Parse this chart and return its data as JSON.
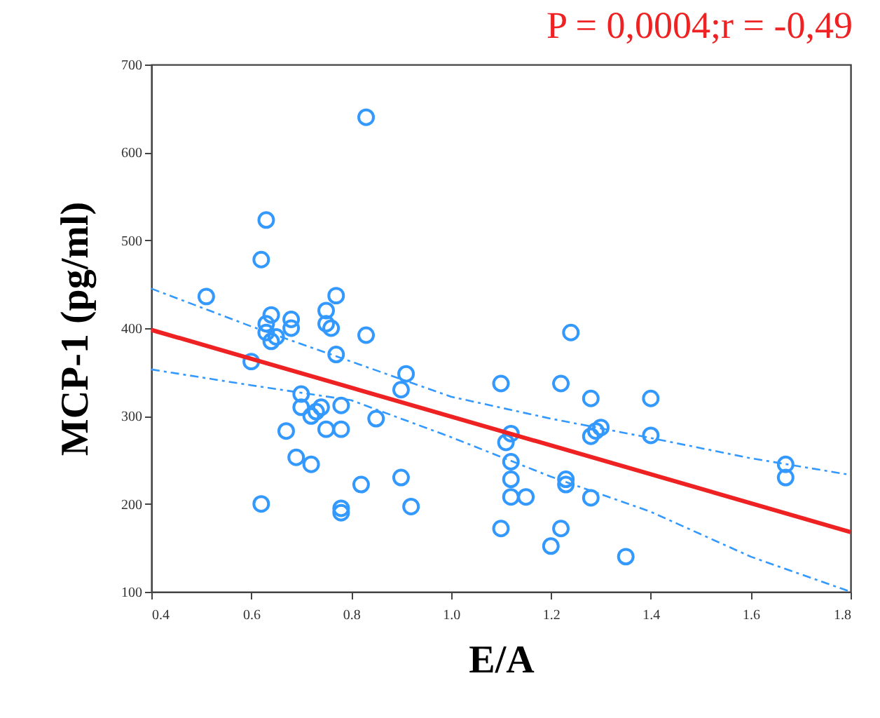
{
  "chart_data": {
    "type": "scatter",
    "xlabel": "E/A",
    "ylabel": "MCP-1 (pg/ml)",
    "annotations": [
      "P = 0,0004;r = -0,49"
    ],
    "xlim": [
      0.4,
      1.8
    ],
    "ylim": [
      100,
      700
    ],
    "xticks": [
      0.4,
      0.6,
      0.8,
      {
        "value": 1,
        "label": "1.0"
      },
      1.2,
      1.4,
      1.6,
      1.8
    ],
    "yticks": [
      100,
      200,
      300,
      400,
      500,
      600,
      700
    ],
    "grid": false,
    "series": [
      {
        "marker": "circle",
        "color": "#3399ff",
        "x": [
          0.51,
          0.6,
          0.62,
          0.63,
          0.62,
          0.63,
          0.63,
          0.64,
          0.64,
          0.65,
          0.68,
          0.68,
          0.67,
          0.69,
          0.7,
          0.7,
          0.72,
          0.72,
          0.73,
          0.75,
          0.75,
          0.76,
          0.77,
          0.77,
          0.74,
          0.75,
          0.78,
          0.78,
          0.78,
          0.78,
          0.82,
          0.83,
          0.83,
          0.85,
          0.9,
          0.9,
          0.91,
          0.92,
          1.1,
          1.1,
          1.11,
          1.12,
          1.12,
          1.12,
          1.12,
          1.15,
          1.2,
          1.22,
          1.22,
          1.23,
          1.23,
          1.24,
          1.28,
          1.28,
          1.28,
          1.29,
          1.3,
          1.35,
          1.4,
          1.4,
          1.67,
          1.67
        ],
        "values": [
          436,
          362,
          478,
          523,
          200,
          405,
          395,
          385,
          415,
          390,
          410,
          400,
          283,
          253,
          325,
          310,
          300,
          245,
          305,
          420,
          405,
          400,
          437,
          370,
          310,
          285,
          285,
          312,
          195,
          190,
          222,
          392,
          640,
          297,
          330,
          230,
          348,
          197,
          337,
          172,
          270,
          280,
          248,
          228,
          208,
          208,
          152,
          337,
          172,
          228,
          222,
          395,
          320,
          277,
          207,
          283,
          287,
          140,
          320,
          278,
          245,
          230
        ]
      },
      {
        "type": "line",
        "line_style": "solid",
        "color": "#ee2222",
        "x": [
          0.4,
          1.8
        ],
        "values": [
          398,
          168
        ]
      },
      {
        "type": "line",
        "line_style": "dashed",
        "color": "#3399ff",
        "x": [
          0.4,
          0.6,
          0.8,
          1.0,
          1.2,
          1.4,
          1.6,
          1.8
        ],
        "values": [
          445,
          402,
          362,
          322,
          297,
          275,
          252,
          233
        ]
      },
      {
        "type": "line",
        "line_style": "dashed",
        "color": "#3399ff",
        "x": [
          0.4,
          0.6,
          0.8,
          1.0,
          1.2,
          1.4,
          1.6,
          1.8
        ],
        "values": [
          353,
          335,
          318,
          276,
          231,
          191,
          140,
          100
        ]
      }
    ]
  }
}
